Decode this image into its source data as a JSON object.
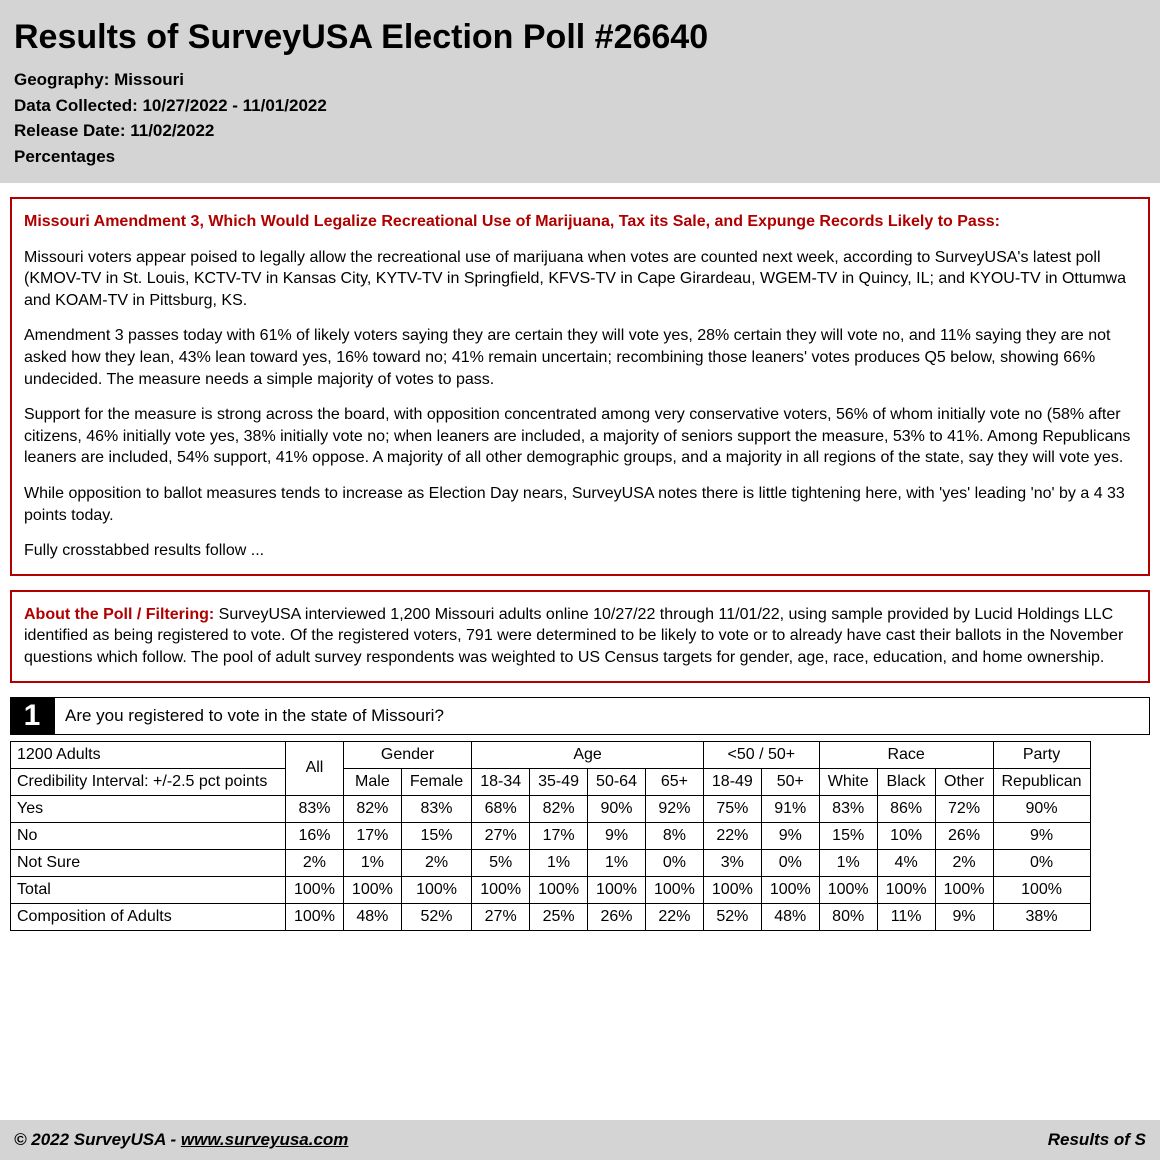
{
  "header": {
    "title": "Results of SurveyUSA Election Poll #26640",
    "geography": "Geography: Missouri",
    "data_collected": "Data Collected: 10/27/2022 - 11/01/2022",
    "release_date": "Release Date: 11/02/2022",
    "percentages": "Percentages"
  },
  "summary": {
    "headline": "Missouri Amendment 3, Which Would Legalize Recreational Use of Marijuana, Tax its Sale, and Expunge Records Likely to Pass:",
    "p1": "Missouri voters appear poised to legally allow the recreational use of marijuana when votes are counted next week, according to SurveyUSA's latest poll (KMOV-TV in St. Louis, KCTV-TV in Kansas City, KYTV-TV in Springfield, KFVS-TV in Cape Girardeau, WGEM-TV in Quincy, IL; and KYOU-TV in Ottumwa and KOAM-TV in Pittsburg, KS.",
    "p2": "Amendment 3 passes today with 61% of likely voters saying they are certain they will vote yes, 28% certain they will vote no, and 11% saying they are not asked how they lean, 43% lean toward yes, 16% toward no; 41% remain uncertain; recombining those leaners' votes produces Q5 below, showing 66% undecided. The measure needs a simple majority of votes to pass.",
    "p3": "Support for the measure is strong across the board, with opposition concentrated among very conservative voters, 56% of whom initially vote no (58% after citizens, 46% initially vote yes, 38% initially vote no; when leaners are included, a majority of seniors support the measure, 53% to 41%. Among Republicans leaners are included, 54% support, 41% oppose. A majority of all other demographic groups, and a majority in all regions of the state, say they will vote yes.",
    "p4": "While opposition to ballot measures tends to increase as Election Day nears, SurveyUSA notes there is little tightening here, with 'yes' leading 'no' by a 4 33 points today.",
    "p5": "Fully crosstabbed results follow ..."
  },
  "about": {
    "label": "About the Poll / Filtering: ",
    "text": "SurveyUSA interviewed 1,200 Missouri adults online 10/27/22 through 11/01/22, using sample provided by Lucid Holdings LLC identified as being registered to vote. Of the registered voters, 791 were determined to be likely to vote or to already have cast their ballots in the November questions which follow. The pool of adult survey respondents was weighted to US Census targets for gender, age, race, education, and home ownership."
  },
  "q1": {
    "number": "1",
    "text": "Are you registered to vote in the state of Missouri?",
    "meta1": "1200 Adults",
    "meta2": "Credibility Interval: +/-2.5 pct points",
    "groups": [
      "All",
      "Gender",
      "Age",
      "<50 / 50+",
      "Race",
      "Party"
    ],
    "subcols": [
      "Male",
      "Female",
      "18-34",
      "35-49",
      "50-64",
      "65+",
      "18-49",
      "50+",
      "White",
      "Black",
      "Other",
      "Republican"
    ],
    "rows": [
      {
        "label": "Yes",
        "cells": [
          "83%",
          "82%",
          "83%",
          "68%",
          "82%",
          "90%",
          "92%",
          "75%",
          "91%",
          "83%",
          "86%",
          "72%",
          "90%"
        ]
      },
      {
        "label": "No",
        "cells": [
          "16%",
          "17%",
          "15%",
          "27%",
          "17%",
          "9%",
          "8%",
          "22%",
          "9%",
          "15%",
          "10%",
          "26%",
          "9%"
        ]
      },
      {
        "label": "Not Sure",
        "cells": [
          "2%",
          "1%",
          "2%",
          "5%",
          "1%",
          "1%",
          "0%",
          "3%",
          "0%",
          "1%",
          "4%",
          "2%",
          "0%"
        ]
      },
      {
        "label": "Total",
        "cells": [
          "100%",
          "100%",
          "100%",
          "100%",
          "100%",
          "100%",
          "100%",
          "100%",
          "100%",
          "100%",
          "100%",
          "100%",
          "100%"
        ]
      },
      {
        "label": "Composition of Adults",
        "cells": [
          "100%",
          "48%",
          "52%",
          "27%",
          "25%",
          "26%",
          "22%",
          "52%",
          "48%",
          "80%",
          "11%",
          "9%",
          "38%"
        ]
      }
    ]
  },
  "footer": {
    "left_prefix": "© 2022 SurveyUSA - ",
    "link": "www.surveyusa.com",
    "right": "Results of S"
  },
  "colors": {
    "header_bg": "#d4d4d4",
    "border_red": "#b00000",
    "text_red": "#b00000"
  }
}
